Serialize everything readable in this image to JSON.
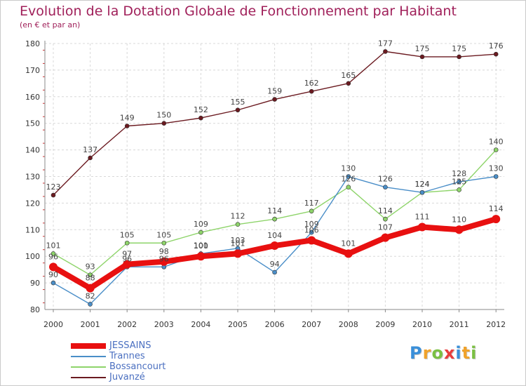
{
  "chart_data": {
    "type": "line",
    "title": "Evolution de la Dotation Globale de Fonctionnement par Habitant",
    "subtitle": "(en € et par an)",
    "xlabel": "",
    "ylabel": "",
    "ylim": [
      80,
      180
    ],
    "yticks": [
      80,
      90,
      100,
      110,
      120,
      130,
      140,
      150,
      160,
      170,
      180
    ],
    "categories": [
      "2000",
      "2001",
      "2002",
      "2003",
      "2004",
      "2005",
      "2006",
      "2007",
      "2008",
      "2009",
      "2010",
      "2011",
      "2012"
    ],
    "grid": true,
    "series": [
      {
        "name": "Juvanzé",
        "color": "#6b1a20",
        "values": [
          123,
          137,
          149,
          150,
          152,
          155,
          159,
          162,
          165,
          177,
          175,
          175,
          176
        ]
      },
      {
        "name": "Bossancourt",
        "color": "#8ed46a",
        "values": [
          101,
          93,
          105,
          105,
          109,
          112,
          114,
          117,
          126,
          114,
          124,
          125,
          140
        ]
      },
      {
        "name": "Trannes",
        "color": "#4a8ec8",
        "values": [
          90,
          82,
          96,
          96,
          101,
          103,
          94,
          109,
          130,
          126,
          124,
          128,
          130
        ]
      },
      {
        "name": "JESSAINS",
        "color": "#e81010",
        "values": [
          96,
          88,
          97,
          98,
          100,
          101,
          104,
          106,
          101,
          107,
          111,
          110,
          114
        ]
      }
    ]
  },
  "legend": {
    "items": [
      {
        "name": "JESSAINS",
        "color": "#e81010"
      },
      {
        "name": "Trannes",
        "color": "#4a8ec8"
      },
      {
        "name": "Bossancourt",
        "color": "#8ed46a"
      },
      {
        "name": "Juvanzé",
        "color": "#6b1a20"
      }
    ]
  },
  "logo": {
    "letters": [
      "P",
      "r",
      "o",
      "x",
      "i",
      "t",
      "i"
    ],
    "colors": [
      "#3a8fd9",
      "#f0a22a",
      "#7bc043",
      "#e83c3c",
      "#3a8fd9",
      "#f0a22a",
      "#7bc043"
    ]
  }
}
